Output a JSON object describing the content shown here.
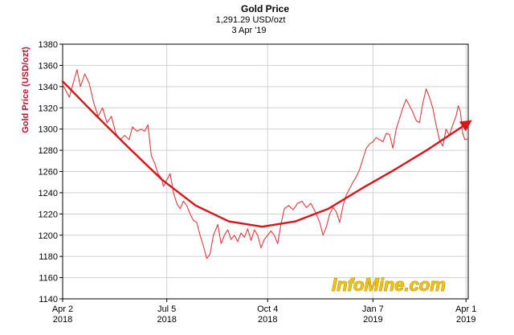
{
  "chart_data": {
    "type": "line",
    "title": "Gold Price",
    "subtitle_price": "1,291.29 USD/ozt",
    "subtitle_date": "3 Apr '19",
    "ylabel": "Gold Price (USD/ozt)",
    "xlabel": "",
    "ylim": [
      1140,
      1380
    ],
    "y_ticks": [
      1140,
      1160,
      1180,
      1200,
      1220,
      1240,
      1260,
      1280,
      1300,
      1320,
      1340,
      1360,
      1380
    ],
    "x_ticks": [
      {
        "line1": "Apr 2",
        "line2": "2018",
        "t": 0
      },
      {
        "line1": "Jul 5",
        "line2": "2018",
        "t": 94
      },
      {
        "line1": "Oct 4",
        "line2": "2018",
        "t": 185
      },
      {
        "line1": "Jan 7",
        "line2": "2019",
        "t": 280
      },
      {
        "line1": "Apr 1",
        "line2": "2019",
        "t": 364
      }
    ],
    "xlim": [
      0,
      366
    ],
    "grid": true,
    "series": [
      {
        "color": "#e8383d",
        "points": [
          [
            0,
            1342
          ],
          [
            6,
            1330
          ],
          [
            10,
            1345
          ],
          [
            13,
            1356
          ],
          [
            16,
            1340
          ],
          [
            20,
            1352
          ],
          [
            24,
            1343
          ],
          [
            28,
            1325
          ],
          [
            32,
            1312
          ],
          [
            36,
            1320
          ],
          [
            40,
            1306
          ],
          [
            44,
            1312
          ],
          [
            48,
            1296
          ],
          [
            52,
            1290
          ],
          [
            56,
            1294
          ],
          [
            60,
            1290
          ],
          [
            63,
            1302
          ],
          [
            67,
            1298
          ],
          [
            71,
            1300
          ],
          [
            74,
            1298
          ],
          [
            77,
            1304
          ],
          [
            80,
            1275
          ],
          [
            83,
            1268
          ],
          [
            86,
            1258
          ],
          [
            89,
            1254
          ],
          [
            91,
            1246
          ],
          [
            94,
            1252
          ],
          [
            97,
            1258
          ],
          [
            100,
            1240
          ],
          [
            103,
            1230
          ],
          [
            106,
            1225
          ],
          [
            109,
            1232
          ],
          [
            112,
            1228
          ],
          [
            115,
            1220
          ],
          [
            118,
            1214
          ],
          [
            121,
            1212
          ],
          [
            124,
            1200
          ],
          [
            127,
            1190
          ],
          [
            130,
            1178
          ],
          [
            133,
            1182
          ],
          [
            136,
            1200
          ],
          [
            140,
            1210
          ],
          [
            143,
            1192
          ],
          [
            146,
            1200
          ],
          [
            149,
            1205
          ],
          [
            152,
            1196
          ],
          [
            155,
            1200
          ],
          [
            158,
            1194
          ],
          [
            161,
            1202
          ],
          [
            164,
            1198
          ],
          [
            167,
            1206
          ],
          [
            170,
            1195
          ],
          [
            173,
            1205
          ],
          [
            176,
            1200
          ],
          [
            179,
            1188
          ],
          [
            182,
            1196
          ],
          [
            185,
            1200
          ],
          [
            188,
            1204
          ],
          [
            191,
            1200
          ],
          [
            194,
            1192
          ],
          [
            197,
            1210
          ],
          [
            200,
            1225
          ],
          [
            204,
            1228
          ],
          [
            208,
            1224
          ],
          [
            212,
            1230
          ],
          [
            216,
            1232
          ],
          [
            220,
            1226
          ],
          [
            224,
            1230
          ],
          [
            228,
            1222
          ],
          [
            232,
            1212
          ],
          [
            235,
            1200
          ],
          [
            238,
            1208
          ],
          [
            241,
            1220
          ],
          [
            244,
            1226
          ],
          [
            247,
            1222
          ],
          [
            250,
            1212
          ],
          [
            253,
            1228
          ],
          [
            256,
            1238
          ],
          [
            259,
            1244
          ],
          [
            262,
            1250
          ],
          [
            265,
            1255
          ],
          [
            268,
            1262
          ],
          [
            271,
            1272
          ],
          [
            274,
            1282
          ],
          [
            277,
            1286
          ],
          [
            280,
            1288
          ],
          [
            283,
            1292
          ],
          [
            286,
            1290
          ],
          [
            289,
            1288
          ],
          [
            292,
            1296
          ],
          [
            295,
            1295
          ],
          [
            298,
            1282
          ],
          [
            301,
            1300
          ],
          [
            304,
            1310
          ],
          [
            307,
            1320
          ],
          [
            310,
            1328
          ],
          [
            313,
            1322
          ],
          [
            316,
            1316
          ],
          [
            319,
            1308
          ],
          [
            322,
            1306
          ],
          [
            325,
            1324
          ],
          [
            328,
            1338
          ],
          [
            331,
            1330
          ],
          [
            334,
            1320
          ],
          [
            337,
            1304
          ],
          [
            340,
            1290
          ],
          [
            343,
            1284
          ],
          [
            346,
            1300
          ],
          [
            349,
            1294
          ],
          [
            352,
            1304
          ],
          [
            355,
            1312
          ],
          [
            357,
            1322
          ],
          [
            359,
            1316
          ],
          [
            361,
            1296
          ],
          [
            363,
            1290
          ],
          [
            366,
            1291
          ]
        ]
      },
      {
        "color": "#d7141a",
        "points": [
          [
            0,
            1345
          ],
          [
            30,
            1313
          ],
          [
            60,
            1282
          ],
          [
            90,
            1252
          ],
          [
            120,
            1228
          ],
          [
            150,
            1213
          ],
          [
            180,
            1208
          ],
          [
            210,
            1213
          ],
          [
            240,
            1225
          ],
          [
            270,
            1244
          ],
          [
            300,
            1262
          ],
          [
            330,
            1281
          ],
          [
            366,
            1306
          ]
        ]
      }
    ]
  },
  "watermark": "InfoMine.com"
}
